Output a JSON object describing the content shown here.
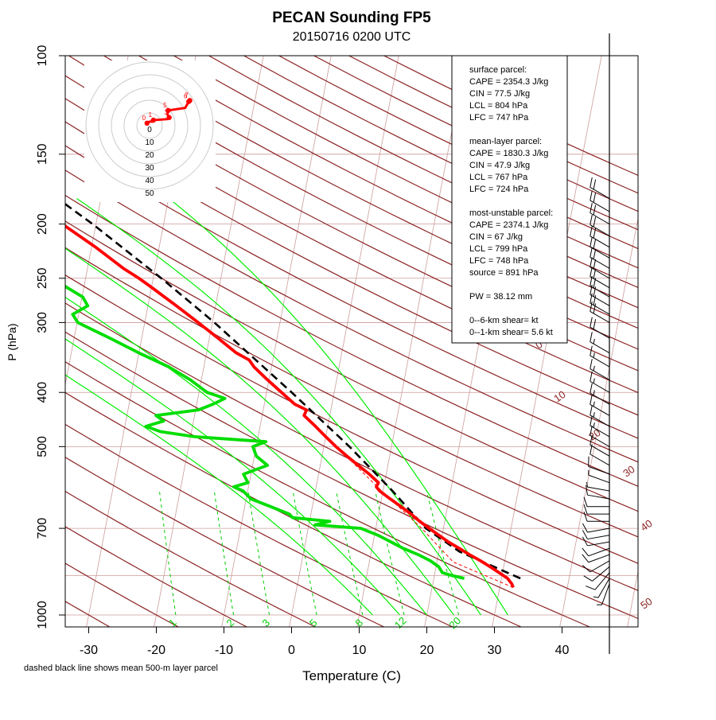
{
  "title": "PECAN Sounding FP5",
  "subtitle": "20150716 0200 UTC",
  "footnote": "dashed black line shows mean 500-m layer parcel",
  "colors": {
    "isotherm": "#cd9b9b",
    "dry_adiabat": "#8b2323",
    "moist_adiabat": "#00ee00",
    "mixing_ratio": "#00cc00",
    "temperature": "#ff0000",
    "dewpoint": "#00dd00",
    "parcel": "#000000",
    "hodograph_rings": "#cccccc",
    "hodograph_trace": "#ff0000",
    "barbs": "#000000"
  },
  "chart_data": {
    "type": "skew-t log-p sounding",
    "title": "PECAN Sounding FP5",
    "subtitle": "20150716 0200 UTC",
    "xlabel": "Temperature (C)",
    "ylabel": "P (hPa)",
    "xlim": [
      -33,
      47
    ],
    "pressure_range_hPa": [
      1050,
      100
    ],
    "x_ticks": [
      -30,
      -20,
      -10,
      0,
      10,
      20,
      30,
      40
    ],
    "p_ticks": [
      100,
      150,
      200,
      250,
      300,
      400,
      500,
      700,
      1000
    ],
    "dry_adiabat_labels": [
      "0",
      "10",
      "20",
      "30",
      "40",
      "50"
    ],
    "mixing_ratio_labels": [
      "1",
      "2",
      "3",
      "5",
      "8",
      "12",
      "20"
    ],
    "mixing_ratios": [
      1,
      2,
      3,
      5,
      8,
      12,
      20
    ],
    "moist_adiabat_theta_w": [
      12,
      16,
      20,
      24,
      28,
      32
    ],
    "temperature_profile": [
      {
        "p": 893,
        "t": 32.0
      },
      {
        "p": 880,
        "t": 31.7
      },
      {
        "p": 860,
        "t": 30.9
      },
      {
        "p": 840,
        "t": 29.5
      },
      {
        "p": 820,
        "t": 28.0
      },
      {
        "p": 800,
        "t": 26.4
      },
      {
        "p": 780,
        "t": 24.6
      },
      {
        "p": 760,
        "t": 22.9
      },
      {
        "p": 740,
        "t": 21.1
      },
      {
        "p": 720,
        "t": 19.5
      },
      {
        "p": 700,
        "t": 17.9
      },
      {
        "p": 680,
        "t": 16.3
      },
      {
        "p": 660,
        "t": 14.8
      },
      {
        "p": 640,
        "t": 13.1
      },
      {
        "p": 620,
        "t": 11.3
      },
      {
        "p": 600,
        "t": 9.5
      },
      {
        "p": 590,
        "t": 8.9
      },
      {
        "p": 580,
        "t": 9.1
      },
      {
        "p": 560,
        "t": 7.5
      },
      {
        "p": 540,
        "t": 5.6
      },
      {
        "p": 520,
        "t": 3.7
      },
      {
        "p": 500,
        "t": 1.8
      },
      {
        "p": 480,
        "t": 0.0
      },
      {
        "p": 460,
        "t": -1.8
      },
      {
        "p": 440,
        "t": -3.8
      },
      {
        "p": 430,
        "t": -3.6
      },
      {
        "p": 420,
        "t": -5.5
      },
      {
        "p": 400,
        "t": -7.8
      },
      {
        "p": 380,
        "t": -10.2
      },
      {
        "p": 360,
        "t": -12.6
      },
      {
        "p": 350,
        "t": -13.5
      },
      {
        "p": 340,
        "t": -15.6
      },
      {
        "p": 320,
        "t": -18.7
      },
      {
        "p": 300,
        "t": -22.1
      },
      {
        "p": 280,
        "t": -25.8
      },
      {
        "p": 260,
        "t": -29.9
      },
      {
        "p": 250,
        "t": -32.1
      },
      {
        "p": 240,
        "t": -34.7
      },
      {
        "p": 220,
        "t": -39.4
      },
      {
        "p": 200,
        "t": -45.0
      },
      {
        "p": 180,
        "t": -50.5
      }
    ],
    "dewpoint_profile": [
      {
        "p": 860,
        "t": 24.5
      },
      {
        "p": 850,
        "t": 22.6
      },
      {
        "p": 840,
        "t": 21.1
      },
      {
        "p": 820,
        "t": 20.4
      },
      {
        "p": 800,
        "t": 19.0
      },
      {
        "p": 780,
        "t": 17.0
      },
      {
        "p": 760,
        "t": 14.6
      },
      {
        "p": 740,
        "t": 12.6
      },
      {
        "p": 720,
        "t": 10.5
      },
      {
        "p": 700,
        "t": 7.8
      },
      {
        "p": 690,
        "t": 0.9
      },
      {
        "p": 680,
        "t": 3.0
      },
      {
        "p": 670,
        "t": -2.6
      },
      {
        "p": 660,
        "t": -3.2
      },
      {
        "p": 640,
        "t": -6.2
      },
      {
        "p": 620,
        "t": -9.3
      },
      {
        "p": 600,
        "t": -10.7
      },
      {
        "p": 590,
        "t": -12.2
      },
      {
        "p": 580,
        "t": -10.2
      },
      {
        "p": 560,
        "t": -11.1
      },
      {
        "p": 540,
        "t": -7.8
      },
      {
        "p": 520,
        "t": -9.7
      },
      {
        "p": 500,
        "t": -10.5
      },
      {
        "p": 490,
        "t": -8.7
      },
      {
        "p": 480,
        "t": -19.4
      },
      {
        "p": 470,
        "t": -24.6
      },
      {
        "p": 460,
        "t": -26.9
      },
      {
        "p": 450,
        "t": -24.4
      },
      {
        "p": 440,
        "t": -25.7
      },
      {
        "p": 430,
        "t": -19.6
      },
      {
        "p": 420,
        "t": -17.6
      },
      {
        "p": 410,
        "t": -16.0
      },
      {
        "p": 400,
        "t": -18.8
      },
      {
        "p": 380,
        "t": -21.6
      },
      {
        "p": 360,
        "t": -25.2
      },
      {
        "p": 340,
        "t": -30.0
      },
      {
        "p": 320,
        "t": -34.7
      },
      {
        "p": 300,
        "t": -39.9
      },
      {
        "p": 290,
        "t": -40.9
      },
      {
        "p": 280,
        "t": -38.9
      },
      {
        "p": 270,
        "t": -39.9
      },
      {
        "p": 250,
        "t": -45.0
      },
      {
        "p": 240,
        "t": -52.3
      },
      {
        "p": 220,
        "t": -55.8
      },
      {
        "p": 200,
        "t": -59.6
      },
      {
        "p": 180,
        "t": -64.0
      }
    ],
    "mean_layer_parcel_path": [
      {
        "p": 860,
        "t": 32.8
      },
      {
        "p": 770,
        "t": 23.0
      },
      {
        "p": 700,
        "t": 17.4
      },
      {
        "p": 600,
        "t": 11.4
      },
      {
        "p": 500,
        "t": 3.8
      },
      {
        "p": 400,
        "t": -6.3
      },
      {
        "p": 300,
        "t": -19.7
      },
      {
        "p": 250,
        "t": -28.8
      },
      {
        "p": 200,
        "t": -40.5
      },
      {
        "p": 175,
        "t": -48.0
      }
    ],
    "surface_parcel_path": [
      {
        "p": 893,
        "t": 32.0
      },
      {
        "p": 804,
        "t": 22.4
      },
      {
        "p": 747,
        "t": 19.4
      },
      {
        "p": 700,
        "t": 16.8
      },
      {
        "p": 600,
        "t": 9.8
      },
      {
        "p": 550,
        "t": 6.0
      },
      {
        "p": 500,
        "t": 2.0
      }
    ],
    "hodograph": {
      "ring_labels": [
        "0",
        "10",
        "20",
        "30",
        "40",
        "50"
      ],
      "points": [
        {
          "u": -1.0,
          "v": 1.0,
          "label": "0"
        },
        {
          "u": 0.0,
          "v": 1.6
        },
        {
          "u": 1.2,
          "v": 1.6
        },
        {
          "u": 1.5,
          "v": 2.2,
          "label": "1"
        },
        {
          "u": 7.0,
          "v": 2.6
        },
        {
          "u": 7.7,
          "v": 3.2,
          "label": "3"
        },
        {
          "u": 7.0,
          "v": 4.5
        },
        {
          "u": 7.3,
          "v": 6.0,
          "label": "5"
        },
        {
          "u": 14.0,
          "v": 7.0
        },
        {
          "u": 15.4,
          "v": 9.5,
          "label": "6"
        },
        {
          "u": 15.8,
          "v": 9.9,
          "label": "7"
        }
      ]
    },
    "wind_barbs_kt": [
      {
        "p": 880,
        "spd": 5,
        "dir": 200
      },
      {
        "p": 860,
        "spd": 5,
        "dir": 210
      },
      {
        "p": 840,
        "spd": 10,
        "dir": 220
      },
      {
        "p": 820,
        "spd": 10,
        "dir": 230
      },
      {
        "p": 800,
        "spd": 10,
        "dir": 240
      },
      {
        "p": 780,
        "spd": 10,
        "dir": 250
      },
      {
        "p": 760,
        "spd": 10,
        "dir": 250
      },
      {
        "p": 740,
        "spd": 10,
        "dir": 260
      },
      {
        "p": 720,
        "spd": 10,
        "dir": 260
      },
      {
        "p": 700,
        "spd": 10,
        "dir": 260
      },
      {
        "p": 680,
        "spd": 10,
        "dir": 270
      },
      {
        "p": 660,
        "spd": 10,
        "dir": 270
      },
      {
        "p": 640,
        "spd": 10,
        "dir": 270
      },
      {
        "p": 620,
        "spd": 10,
        "dir": 280
      },
      {
        "p": 600,
        "spd": 5,
        "dir": 280
      },
      {
        "p": 580,
        "spd": 5,
        "dir": 290
      },
      {
        "p": 560,
        "spd": 10,
        "dir": 290
      },
      {
        "p": 540,
        "spd": 10,
        "dir": 300
      },
      {
        "p": 520,
        "spd": 10,
        "dir": 300
      },
      {
        "p": 500,
        "spd": 10,
        "dir": 300
      },
      {
        "p": 480,
        "spd": 15,
        "dir": 300
      },
      {
        "p": 460,
        "spd": 15,
        "dir": 300
      },
      {
        "p": 440,
        "spd": 15,
        "dir": 300
      },
      {
        "p": 420,
        "spd": 15,
        "dir": 300
      },
      {
        "p": 400,
        "spd": 15,
        "dir": 300
      },
      {
        "p": 380,
        "spd": 15,
        "dir": 300
      },
      {
        "p": 360,
        "spd": 15,
        "dir": 300
      },
      {
        "p": 340,
        "spd": 15,
        "dir": 300
      },
      {
        "p": 320,
        "spd": 20,
        "dir": 300
      },
      {
        "p": 300,
        "spd": 20,
        "dir": 300
      },
      {
        "p": 290,
        "spd": 20,
        "dir": 300
      },
      {
        "p": 280,
        "spd": 20,
        "dir": 300
      },
      {
        "p": 270,
        "spd": 20,
        "dir": 300
      },
      {
        "p": 260,
        "spd": 20,
        "dir": 300
      },
      {
        "p": 250,
        "spd": 20,
        "dir": 300
      },
      {
        "p": 240,
        "spd": 20,
        "dir": 300
      },
      {
        "p": 230,
        "spd": 20,
        "dir": 300
      },
      {
        "p": 220,
        "spd": 20,
        "dir": 300
      },
      {
        "p": 210,
        "spd": 20,
        "dir": 300
      },
      {
        "p": 200,
        "spd": 20,
        "dir": 300
      },
      {
        "p": 190,
        "spd": 20,
        "dir": 300
      },
      {
        "p": 180,
        "spd": 20,
        "dir": 300
      }
    ]
  },
  "parameters": [
    {
      "text": "surface parcel:"
    },
    {
      "text": "CAPE = 2354.3 J/kg"
    },
    {
      "text": "CIN = 77.5 J/kg"
    },
    {
      "text": "LCL = 804 hPa"
    },
    {
      "text": "LFC = 747 hPa"
    },
    {
      "text": ""
    },
    {
      "text": "mean-layer parcel:"
    },
    {
      "text": "CAPE = 1830.3 J/kg"
    },
    {
      "text": "CIN = 47.9 J/kg"
    },
    {
      "text": "LCL = 767 hPa"
    },
    {
      "text": "LFC = 724 hPa"
    },
    {
      "text": ""
    },
    {
      "text": "most-unstable parcel:"
    },
    {
      "text": "CAPE = 2374.1 J/kg"
    },
    {
      "text": "CIN = 67 J/kg"
    },
    {
      "text": "LCL = 799 hPa"
    },
    {
      "text": "LFC = 748 hPa"
    },
    {
      "text": "source = 891 hPa"
    },
    {
      "text": ""
    },
    {
      "text": "PW =  38.12 mm"
    },
    {
      "text": ""
    },
    {
      "text": "0--6-km shear=  kt"
    },
    {
      "text": "0--1-km shear= 5.6 kt"
    }
  ]
}
